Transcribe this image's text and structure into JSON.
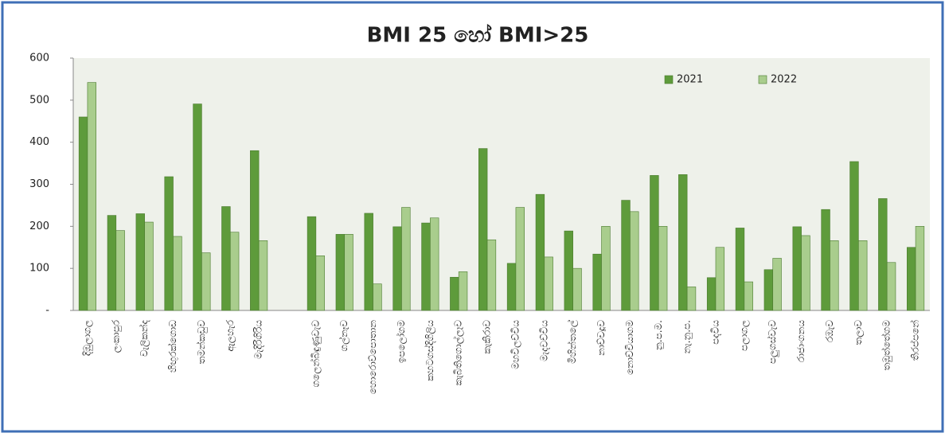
{
  "chart_data": {
    "type": "bar",
    "title": "BMI 25 හෝ  BMI>25",
    "categories": [
      "දිඹුලාගල",
      "ලංකාපුර",
      "වැලිකන්ද",
      "හිඟුරක්ගොඩ",
      "තමන්කඩුව",
      "ඇලහැර",
      "මැදිරිගිරිය",
      null,
      "ගලෙන්බිඳුණුවැව",
      "ගල්නෑව",
      "හොරොව්පොතාන",
      "ඉපලෝගම",
      "කහටගස්දිගිලිය",
      "කැබිතිගොල්ලෑව",
      "කැකිරාව",
      "මහවිලච්චිය",
      "මැදවච්චිය",
      "මිහින්තලේ",
      "නාච්චදූව",
      "නොච්චියාගම",
      "නු.ප.ම.",
      "නැ.නු.ප.",
      "පදවිය",
      "පලාගල",
      "පලුගස්වැව",
      "රාජාංගනය",
      "රඹැව",
      "තලාව",
      "තඹුත්තේගම",
      "තිරප්පනේ"
    ],
    "series": [
      {
        "name": "2021",
        "color": "#5e9b3b",
        "values": [
          460,
          226,
          230,
          318,
          491,
          247,
          380,
          null,
          223,
          181,
          231,
          199,
          208,
          79,
          385,
          112,
          276,
          189,
          134,
          262,
          321,
          323,
          78,
          196,
          97,
          199,
          240,
          354,
          266,
          150
        ]
      },
      {
        "name": "2022",
        "color": "#a9cd8d",
        "values": [
          542,
          190,
          210,
          176,
          137,
          186,
          166,
          null,
          130,
          181,
          63,
          245,
          220,
          92,
          168,
          245,
          127,
          100,
          200,
          235,
          200,
          56,
          150,
          68,
          124,
          178,
          166,
          166,
          114,
          200
        ]
      }
    ],
    "ylim": [
      0,
      600
    ],
    "yticks": [
      {
        "value": 0,
        "label": "-"
      },
      100,
      200,
      300,
      400,
      500,
      600
    ],
    "legend": "upper right"
  }
}
